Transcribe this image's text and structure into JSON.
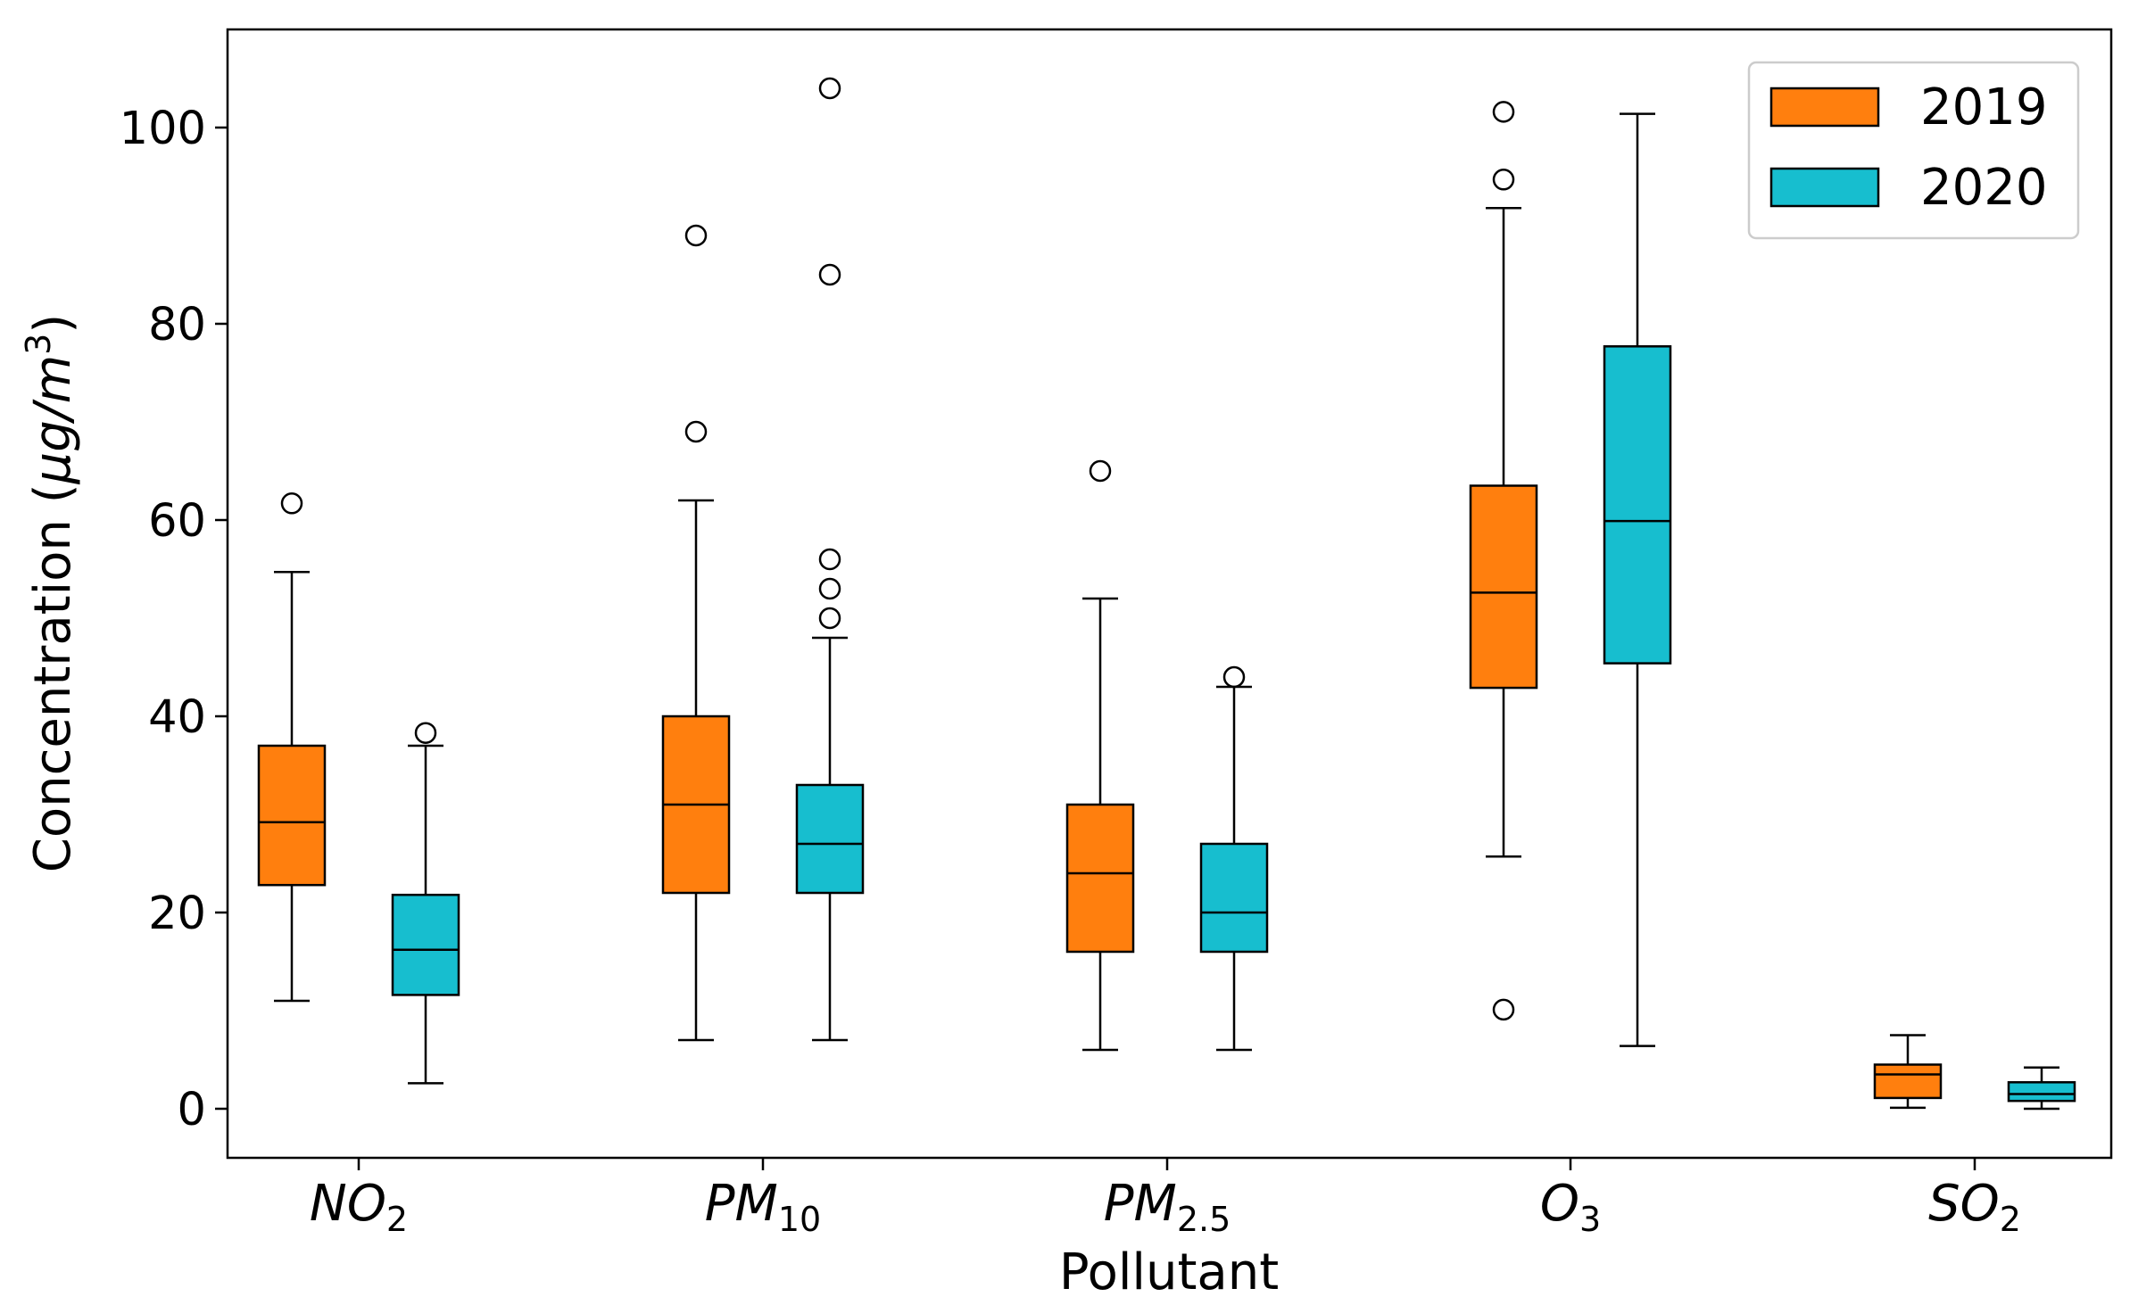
{
  "chart_data": {
    "type": "box",
    "xlabel": "Pollutant",
    "ylabel": "Concentration (μg/m³)",
    "ylabel_parts": {
      "prefix": "Concentration (",
      "mu": "μ",
      "g": "g/",
      "m": "m",
      "exp": "3",
      "suffix": ")"
    },
    "ylim": [
      -5,
      109
    ],
    "yticks": [
      0,
      20,
      40,
      60,
      80,
      100
    ],
    "legend_position": "top-right",
    "categories": [
      {
        "base": "NO",
        "sub": "2",
        "label": "NO2"
      },
      {
        "base": "PM",
        "sub": "10",
        "label": "PM10"
      },
      {
        "base": "PM",
        "sub": "2.5",
        "label": "PM2.5"
      },
      {
        "base": "O",
        "sub": "3",
        "label": "O3"
      },
      {
        "base": "SO",
        "sub": "2",
        "label": "SO2"
      }
    ],
    "series": [
      {
        "name": "2019",
        "color": "#ff7f0e",
        "boxes": [
          {
            "whislo": 11,
            "q1": 22.8,
            "med": 29.2,
            "q3": 37,
            "whishi": 54.7,
            "fliers": [
              61.7
            ]
          },
          {
            "whislo": 7,
            "q1": 22,
            "med": 31,
            "q3": 40,
            "whishi": 62,
            "fliers": [
              69,
              89
            ]
          },
          {
            "whislo": 6,
            "q1": 16,
            "med": 24,
            "q3": 31,
            "whishi": 52,
            "fliers": [
              65
            ]
          },
          {
            "whislo": 25.7,
            "q1": 42.9,
            "med": 52.6,
            "q3": 63.5,
            "whishi": 91.8,
            "fliers": [
              10.1,
              94.7,
              101.6
            ]
          },
          {
            "whislo": 0.1,
            "q1": 1.1,
            "med": 3.5,
            "q3": 4.5,
            "whishi": 7.5,
            "fliers": []
          }
        ]
      },
      {
        "name": "2020",
        "color": "#17becf",
        "boxes": [
          {
            "whislo": 2.6,
            "q1": 11.6,
            "med": 16.2,
            "q3": 21.8,
            "whishi": 37,
            "fliers": [
              38.3
            ]
          },
          {
            "whislo": 7,
            "q1": 22,
            "med": 27,
            "q3": 33,
            "whishi": 48,
            "fliers": [
              50,
              53,
              56,
              85,
              104
            ]
          },
          {
            "whislo": 6,
            "q1": 16,
            "med": 20,
            "q3": 27,
            "whishi": 43,
            "fliers": [
              44
            ]
          },
          {
            "whislo": 6.4,
            "q1": 45.4,
            "med": 59.9,
            "q3": 77.7,
            "whishi": 101.4,
            "fliers": []
          },
          {
            "whislo": 0.0,
            "q1": 0.8,
            "med": 1.5,
            "q3": 2.7,
            "whishi": 4.2,
            "fliers": []
          }
        ]
      }
    ]
  }
}
